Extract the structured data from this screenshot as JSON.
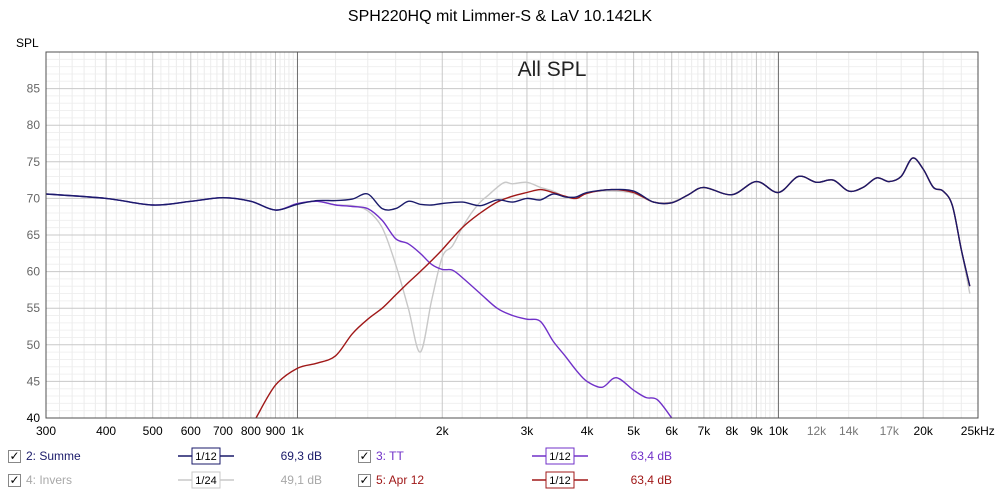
{
  "title": "SPH220HQ mit Limmer-S & LaV 10.142LK",
  "chart_data": {
    "type": "line",
    "title": "SPH220HQ mit Limmer-S & LaV 10.142LK",
    "inner_title": "All SPL",
    "ylabel": "SPL",
    "xlabel": "",
    "x_scale": "log",
    "xlim": [
      300,
      26000
    ],
    "ylim": [
      40,
      90
    ],
    "grid": true,
    "x_ticks": [
      {
        "v": 300,
        "label": "300"
      },
      {
        "v": 400,
        "label": "400"
      },
      {
        "v": 500,
        "label": "500"
      },
      {
        "v": 600,
        "label": "600"
      },
      {
        "v": 700,
        "label": "700"
      },
      {
        "v": 800,
        "label": "800"
      },
      {
        "v": 900,
        "label": "900"
      },
      {
        "v": 1000,
        "label": "1k"
      },
      {
        "v": 2000,
        "label": "2k"
      },
      {
        "v": 3000,
        "label": "3k"
      },
      {
        "v": 4000,
        "label": "4k"
      },
      {
        "v": 5000,
        "label": "5k"
      },
      {
        "v": 6000,
        "label": "6k"
      },
      {
        "v": 7000,
        "label": "7k"
      },
      {
        "v": 8000,
        "label": "8k"
      },
      {
        "v": 9000,
        "label": "9k"
      },
      {
        "v": 10000,
        "label": "10k"
      },
      {
        "v": 12000,
        "label": "12k"
      },
      {
        "v": 14000,
        "label": "14k"
      },
      {
        "v": 17000,
        "label": "17k"
      },
      {
        "v": 20000,
        "label": "20k"
      },
      {
        "v": 25000,
        "label": "25kHz"
      }
    ],
    "y_ticks": [
      40,
      45,
      50,
      55,
      60,
      65,
      70,
      75,
      80,
      85
    ],
    "series": [
      {
        "name": "4: Invers",
        "color": "#c8c8c8",
        "x": [
          300,
          400,
          500,
          600,
          700,
          800,
          900,
          1000,
          1100,
          1200,
          1300,
          1400,
          1500,
          1600,
          1700,
          1800,
          1900,
          2000,
          2100,
          2200,
          2300,
          2400,
          2500,
          2600,
          2700,
          2800,
          3000,
          3200,
          3400,
          3600,
          3800,
          4000,
          4500,
          5000,
          5500,
          6000,
          6500,
          7000,
          8000,
          9000,
          10000,
          11000,
          12000,
          13000,
          14000,
          15000,
          16000,
          17000,
          18000,
          19000,
          20000,
          21000,
          22000,
          23000,
          24000,
          25000
        ],
        "y": [
          70.6,
          70.0,
          69.1,
          69.6,
          70.1,
          69.6,
          68.4,
          69.3,
          69.6,
          69.1,
          69.0,
          68.3,
          66.0,
          61.0,
          55.0,
          49.0,
          56.0,
          62.0,
          63.5,
          66.0,
          68.0,
          69.5,
          70.5,
          71.5,
          72.2,
          72.0,
          72.2,
          71.5,
          71.0,
          70.2,
          70.0,
          70.8,
          71.0,
          70.7,
          69.5,
          69.5,
          70.5,
          71.5,
          70.5,
          72.3,
          70.8,
          73.0,
          72.2,
          72.5,
          71.0,
          71.5,
          72.8,
          72.3,
          73.0,
          75.5,
          74.0,
          71.5,
          71.0,
          69.0,
          63.0,
          57.0
        ]
      },
      {
        "name": "3: TT",
        "color": "#7030c8",
        "x": [
          300,
          400,
          500,
          600,
          700,
          800,
          900,
          1000,
          1100,
          1200,
          1300,
          1400,
          1500,
          1600,
          1700,
          1800,
          1900,
          2000,
          2100,
          2200,
          2400,
          2600,
          2800,
          3000,
          3200,
          3400,
          3600,
          3800,
          4000,
          4300,
          4600,
          5000,
          5300,
          5600,
          6000
        ],
        "y": [
          70.6,
          70.0,
          69.1,
          69.6,
          70.1,
          69.6,
          68.4,
          69.3,
          69.6,
          69.1,
          68.9,
          68.6,
          67.0,
          64.5,
          63.8,
          62.5,
          61.0,
          60.3,
          60.2,
          59.2,
          57.0,
          55.0,
          54.0,
          53.5,
          53.2,
          50.5,
          48.5,
          46.5,
          45.0,
          44.2,
          45.5,
          43.8,
          42.8,
          42.5,
          40.0
        ]
      },
      {
        "name": "5: Apr 12",
        "color": "#a01818",
        "x": [
          820,
          900,
          1000,
          1100,
          1200,
          1300,
          1400,
          1500,
          1600,
          1700,
          1800,
          1900,
          2000,
          2200,
          2400,
          2600,
          2800,
          3000,
          3200,
          3400,
          3600,
          3800,
          4000,
          4500,
          5000,
          5500,
          6000,
          6500,
          7000,
          8000,
          9000,
          10000,
          11000,
          12000,
          13000,
          14000,
          15000,
          16000,
          17000,
          18000,
          19000,
          20000,
          21000,
          22000,
          23000,
          24000,
          25000
        ],
        "y": [
          40.0,
          44.5,
          46.8,
          47.5,
          48.5,
          51.5,
          53.5,
          55.0,
          56.8,
          58.5,
          60.0,
          61.5,
          63.0,
          66.0,
          68.0,
          69.5,
          70.3,
          70.8,
          71.2,
          70.8,
          70.3,
          70.0,
          70.7,
          71.2,
          70.8,
          69.5,
          69.4,
          70.5,
          71.5,
          70.5,
          72.3,
          70.8,
          73.0,
          72.2,
          72.5,
          71.0,
          71.5,
          72.8,
          72.3,
          73.0,
          75.5,
          74.0,
          71.5,
          71.0,
          69.0,
          63.0,
          58.0
        ]
      },
      {
        "name": "2: Summe",
        "color": "#1a1a6a",
        "x": [
          300,
          400,
          500,
          600,
          700,
          800,
          900,
          1000,
          1100,
          1200,
          1300,
          1400,
          1500,
          1600,
          1700,
          1800,
          1900,
          2000,
          2200,
          2400,
          2600,
          2800,
          3000,
          3200,
          3400,
          3600,
          3800,
          4000,
          4500,
          5000,
          5500,
          6000,
          6500,
          7000,
          8000,
          9000,
          10000,
          11000,
          12000,
          13000,
          14000,
          15000,
          16000,
          17000,
          18000,
          19000,
          20000,
          21000,
          22000,
          23000,
          24000,
          25000
        ],
        "y": [
          70.6,
          70.0,
          69.1,
          69.6,
          70.1,
          69.6,
          68.4,
          69.2,
          69.7,
          69.7,
          69.9,
          70.6,
          68.6,
          68.6,
          69.6,
          69.2,
          69.1,
          69.3,
          69.5,
          69.0,
          69.8,
          69.5,
          70.0,
          69.8,
          70.6,
          70.2,
          70.2,
          70.8,
          71.2,
          71.0,
          69.5,
          69.4,
          70.5,
          71.5,
          70.5,
          72.3,
          70.8,
          73.0,
          72.2,
          72.5,
          71.0,
          71.5,
          72.8,
          72.3,
          73.0,
          75.5,
          74.0,
          71.5,
          71.0,
          69.0,
          63.0,
          58.0
        ]
      }
    ],
    "legend": {
      "placement": "bottom",
      "entries": [
        {
          "label": "2: Summe",
          "smoothing": "1/12",
          "value": "69,3 dB",
          "color": "#1a1a6a",
          "checked": "✓"
        },
        {
          "label": "3: TT",
          "smoothing": "1/12",
          "value": "63,4 dB",
          "color": "#7030c8",
          "checked": "✓"
        },
        {
          "label": "4: Invers",
          "smoothing": "1/24",
          "value": "49,1 dB",
          "color": "#c8c8c8",
          "checked": "✓"
        },
        {
          "label": "5: Apr 12",
          "smoothing": "1/12",
          "value": "63,4 dB",
          "color": "#a01818",
          "checked": "✓"
        }
      ]
    }
  }
}
